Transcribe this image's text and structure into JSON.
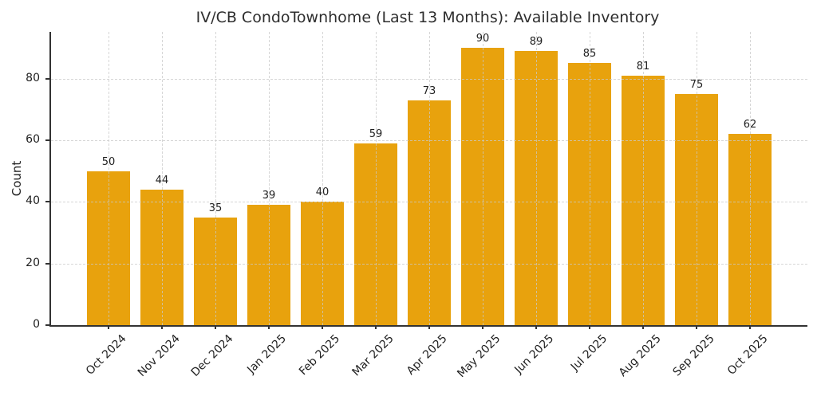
{
  "chart_data": {
    "type": "bar",
    "title": "IV/CB CondoTownhome (Last 13 Months): Available Inventory",
    "xlabel": "",
    "ylabel": "Count",
    "categories": [
      "Oct 2024",
      "Nov 2024",
      "Dec 2024",
      "Jan 2025",
      "Feb 2025",
      "Mar 2025",
      "Apr 2025",
      "May 2025",
      "Jun 2025",
      "Jul 2025",
      "Aug 2025",
      "Sep 2025",
      "Oct 2025"
    ],
    "values": [
      50,
      44,
      35,
      39,
      40,
      59,
      73,
      90,
      89,
      85,
      81,
      75,
      62
    ],
    "yticks": [
      0,
      20,
      40,
      60,
      80
    ],
    "ylim": [
      0,
      95.2
    ],
    "grid": true,
    "grid_style": "dashed",
    "legend_position": "none",
    "x_tick_rotation_deg": 45,
    "bar_value_labels_shown": true
  },
  "colors": {
    "bar": "#E8A20D",
    "grid": "#cccccc",
    "axis": "#333333",
    "text": "#1f1f1f",
    "background": "#ffffff"
  }
}
